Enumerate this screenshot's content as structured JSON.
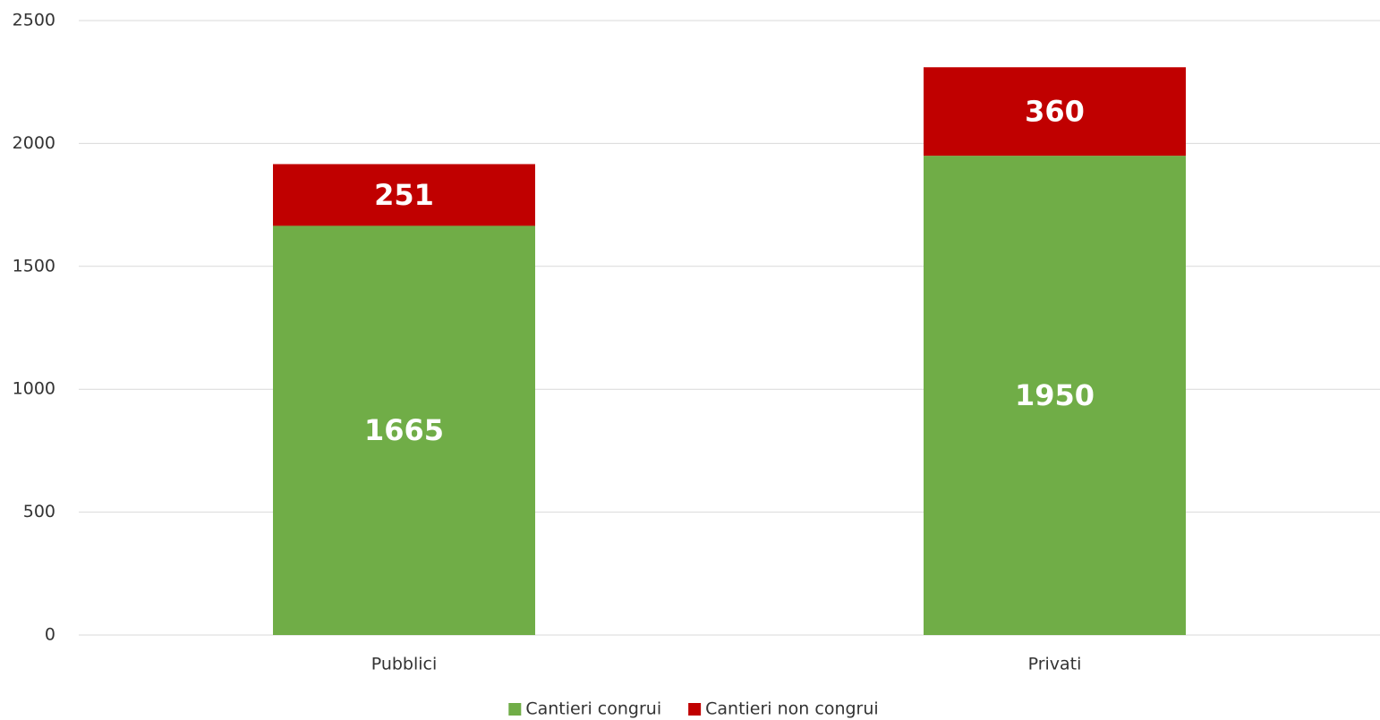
{
  "chart_data": {
    "type": "bar",
    "stacked": true,
    "categories": [
      "Pubblici",
      "Privati"
    ],
    "series": [
      {
        "name": "Cantieri congrui",
        "color": "#70ad47",
        "values": [
          1665,
          1950
        ]
      },
      {
        "name": "Cantieri non congrui",
        "color": "#c00000",
        "values": [
          251,
          360
        ]
      }
    ],
    "ylim": [
      0,
      2500
    ],
    "yticks": [
      0,
      500,
      1000,
      1500,
      2000,
      2500
    ],
    "grid": true,
    "legend": "bottom"
  }
}
